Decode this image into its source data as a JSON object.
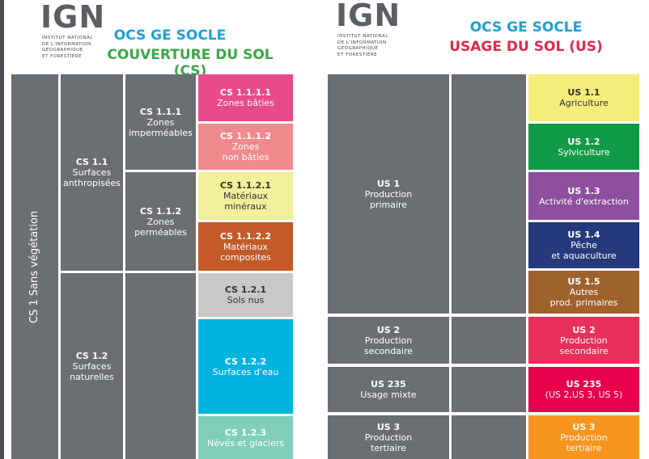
{
  "left": {
    "logo": "IGN",
    "org": [
      "INSTITUT NATIONAL",
      "DE L'INFORMATION",
      "GÉOGRAPHIQUE",
      "ET FORESTIÈRE"
    ],
    "title": "OCS GE SOCLE",
    "subtitle": "COUVERTURE DU SOL (CS)",
    "cells": [
      {
        "code": "CS 1 Sans végétation"
      },
      {
        "code": "CS 1.1",
        "lines": [
          "Surfaces",
          "anthropisées"
        ]
      },
      {
        "code": "CS 1.2",
        "lines": [
          "Surfaces",
          "naturelles"
        ]
      },
      {
        "code": "CS 1.1.1",
        "lines": [
          "Zones",
          "imperméables"
        ]
      },
      {
        "code": "CS 1.1.2",
        "lines": [
          "Zones",
          "perméables"
        ]
      },
      {
        "code": "CS 1.1.1.1",
        "lines": [
          "Zones bâties"
        ]
      },
      {
        "code": "CS 1.1.1.2",
        "lines": [
          "Zones",
          "non bâties"
        ]
      },
      {
        "code": "CS 1.1.2.1",
        "lines": [
          "Matériaux",
          "minéraux"
        ]
      },
      {
        "code": "CS 1.1.2.2",
        "lines": [
          "Matériaux",
          "composites"
        ]
      },
      {
        "code": "CS 1.2.1",
        "lines": [
          "Sols nus"
        ]
      },
      {
        "code": "CS 1.2.2",
        "lines": [
          "Surfaces d'eau"
        ]
      },
      {
        "code": "CS 1.2.3",
        "lines": [
          "Névés et glaciers"
        ]
      }
    ]
  },
  "right": {
    "logo": "IGN",
    "org": [
      "INSTITUT NATIONAL",
      "DE L'INFORMATION",
      "GÉOGRAPHIQUE",
      "ET FORESTIÈRE"
    ],
    "title": "OCS GE SOCLE",
    "subtitle": "USAGE DU SOL (US)",
    "cells": [
      {
        "code": "US 1",
        "lines": [
          "Production",
          "primaire"
        ]
      },
      {
        "code": "US 2",
        "lines": [
          "Production",
          "secondaire"
        ]
      },
      {
        "code": "US 235",
        "lines": [
          "Usage mixte"
        ]
      },
      {
        "code": "US 3",
        "lines": [
          "Production",
          "tertiaire"
        ]
      },
      {
        "code": "US 1.1",
        "lines": [
          "Agriculture"
        ]
      },
      {
        "code": "US 1.2",
        "lines": [
          "Sylviculture"
        ]
      },
      {
        "code": "US 1.3",
        "lines": [
          "Activité d'extraction"
        ]
      },
      {
        "code": "US 1.4",
        "lines": [
          "Pêche",
          "et aquaculture"
        ]
      },
      {
        "code": "US 1.5",
        "lines": [
          "Autres",
          "prod. primaires"
        ]
      },
      {
        "code": "US 2",
        "lines": [
          "Production",
          "secondaire"
        ]
      },
      {
        "code": "US 235",
        "lines": [
          "(US 2,US 3, US 5)"
        ]
      },
      {
        "code": "US 3",
        "lines": [
          "Production",
          "tertiaire"
        ]
      }
    ]
  }
}
